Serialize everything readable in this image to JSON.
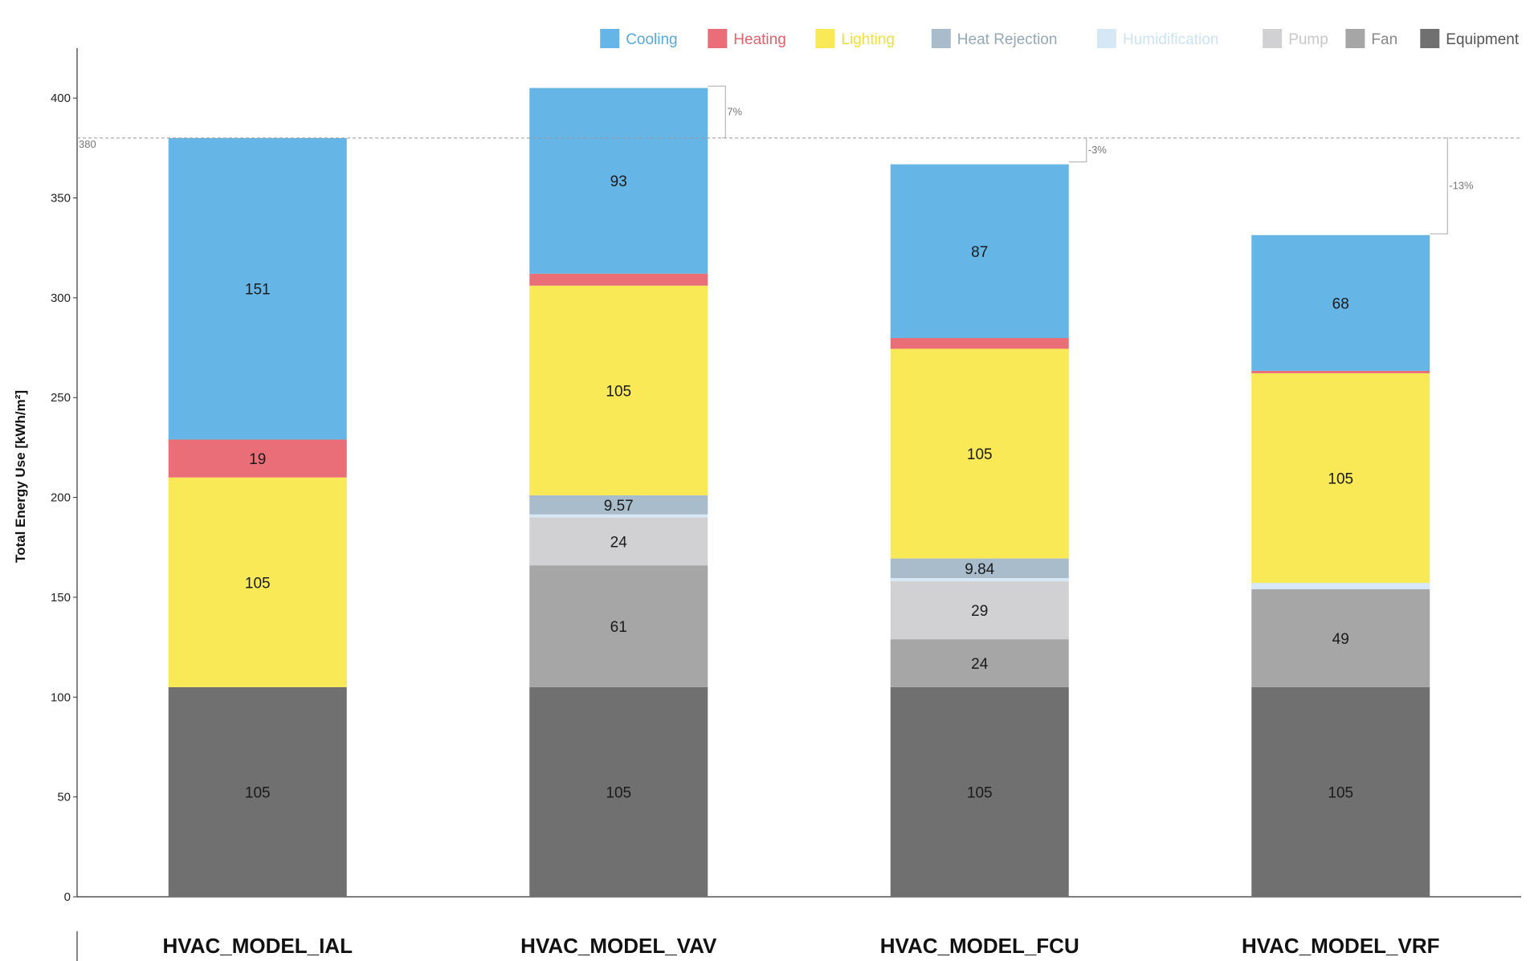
{
  "chart_data": {
    "type": "bar",
    "stacked": true,
    "ylabel": "Total Energy Use [kWh/m²]",
    "ylim": [
      0,
      425
    ],
    "yticks": [
      0,
      50,
      100,
      150,
      200,
      250,
      300,
      350,
      400
    ],
    "baseline": {
      "value": 380,
      "label": "380"
    },
    "legend_position": "top-right",
    "categories": [
      "HVAC_MODEL_IAL",
      "HVAC_MODEL_VAV",
      "HVAC_MODEL_FCU",
      "HVAC_MODEL_VRF"
    ],
    "series": [
      {
        "name": "Equipment",
        "color": "#707070",
        "label_color": "#555555",
        "values": [
          105,
          105,
          105,
          105
        ],
        "labels": [
          "105",
          "105",
          "105",
          "105"
        ]
      },
      {
        "name": "Fan",
        "color": "#a6a6a6",
        "label_color": "#888888",
        "values": [
          0,
          61,
          24,
          49
        ],
        "labels": [
          "",
          "61",
          "24",
          "49"
        ]
      },
      {
        "name": "Pump",
        "color": "#d1d1d4",
        "label_color": "#c8c8c8",
        "values": [
          0,
          24,
          29,
          0
        ],
        "labels": [
          "",
          "24",
          "29",
          ""
        ]
      },
      {
        "name": "Humidification",
        "color": "#d6e8f5",
        "label_color": "#cde3f3",
        "values": [
          0,
          1.5,
          1.6,
          3.2
        ],
        "labels": [
          "",
          "",
          "",
          ""
        ]
      },
      {
        "name": "Heat Rejection",
        "color": "#a9bccb",
        "label_color": "#94a8b8",
        "values": [
          0,
          9.57,
          9.84,
          0
        ],
        "labels": [
          "",
          "9.57",
          "9.84",
          ""
        ]
      },
      {
        "name": "Lighting",
        "color": "#f9e957",
        "label_color": "#f2df38",
        "values": [
          105,
          105,
          105,
          105
        ],
        "labels": [
          "105",
          "105",
          "105",
          "105"
        ]
      },
      {
        "name": "Heating",
        "color": "#ea6e77",
        "label_color": "#e4606c",
        "values": [
          19,
          6,
          5.4,
          1.2
        ],
        "labels": [
          "19",
          "",
          "",
          ""
        ]
      },
      {
        "name": "Cooling",
        "color": "#65b6e6",
        "label_color": "#56a9de",
        "values": [
          151,
          93,
          87,
          68
        ],
        "labels": [
          "151",
          "93",
          "87",
          "68"
        ]
      }
    ],
    "totals": [
      380,
      406,
      368,
      332
    ],
    "differences": [
      null,
      "7%",
      "-3%",
      "-13%"
    ]
  }
}
